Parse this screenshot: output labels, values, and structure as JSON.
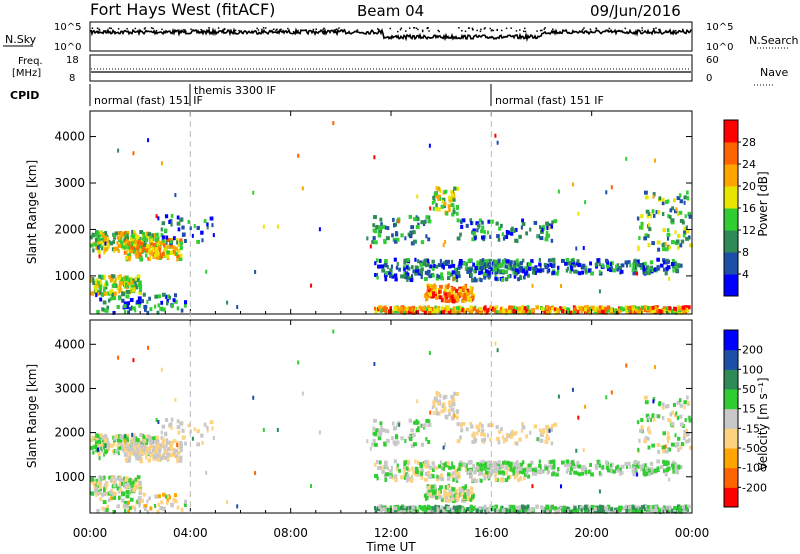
{
  "header": {
    "title": "Fort Hays West (fitACF)",
    "beam": "Beam 04",
    "date": "09/Jun/2016"
  },
  "summary_panels": {
    "nsky": {
      "label": "N.Sky",
      "left_ticks": [
        "10^5",
        "10^0"
      ],
      "right_label": "N.Search",
      "right_ticks": [
        "10^5",
        "10^0"
      ]
    },
    "freq": {
      "label_line1": "Freq.",
      "label_line2": "[MHz]",
      "left_ticks": [
        "18",
        "8"
      ],
      "right_label": "Nave",
      "right_ticks": [
        "60",
        "0"
      ]
    },
    "cpid": {
      "label": "CPID",
      "segments": [
        {
          "start": "00:00",
          "end": "04:00",
          "text": "normal (fast) 151 IF"
        },
        {
          "start": "04:00",
          "end": "16:00",
          "text": "themis 3300 IF"
        },
        {
          "start": "16:00",
          "end": "00:00",
          "text": "normal (fast) 151 IF"
        }
      ]
    }
  },
  "colors": {
    "power_scale": [
      "#0000ff",
      "#1e4fa8",
      "#2e8b57",
      "#32cd32",
      "#e6e600",
      "#ffa500",
      "#ff6400",
      "#ff0000"
    ],
    "velocity_scale": [
      "#ff0000",
      "#ff6400",
      "#ffa500",
      "#ffd280",
      "#c8c8c8",
      "#32cd32",
      "#2e8b57",
      "#1e4fa8",
      "#0000ff"
    ]
  },
  "chart_data": [
    {
      "type": "heatmap",
      "name": "power",
      "ylabel": "Slant Range [km]",
      "yticks": [
        "1000",
        "2000",
        "3000",
        "4000"
      ],
      "ylim": [
        180,
        4550
      ],
      "colorbar_label": "Power [dB]",
      "colorbar_ticks": [
        "4",
        "8",
        "12",
        "16",
        "20",
        "24",
        "28"
      ],
      "zlim": [
        0,
        30
      ]
    },
    {
      "type": "heatmap",
      "name": "velocity",
      "ylabel": "Slant Range [km]",
      "yticks": [
        "1000",
        "2000",
        "3000",
        "4000"
      ],
      "ylim": [
        180,
        4550
      ],
      "colorbar_label": "Velocity [m s⁻¹]",
      "colorbar_ticks": [
        "-200",
        "-100",
        "-50",
        "-15",
        "15",
        "50",
        "100",
        "200"
      ],
      "zlim": [
        -250,
        250
      ]
    }
  ],
  "time_axis": {
    "ticks": [
      "00:00",
      "04:00",
      "08:00",
      "12:00",
      "16:00",
      "20:00",
      "00:00"
    ],
    "label": "Time UT",
    "range_hours": [
      0,
      24
    ]
  }
}
